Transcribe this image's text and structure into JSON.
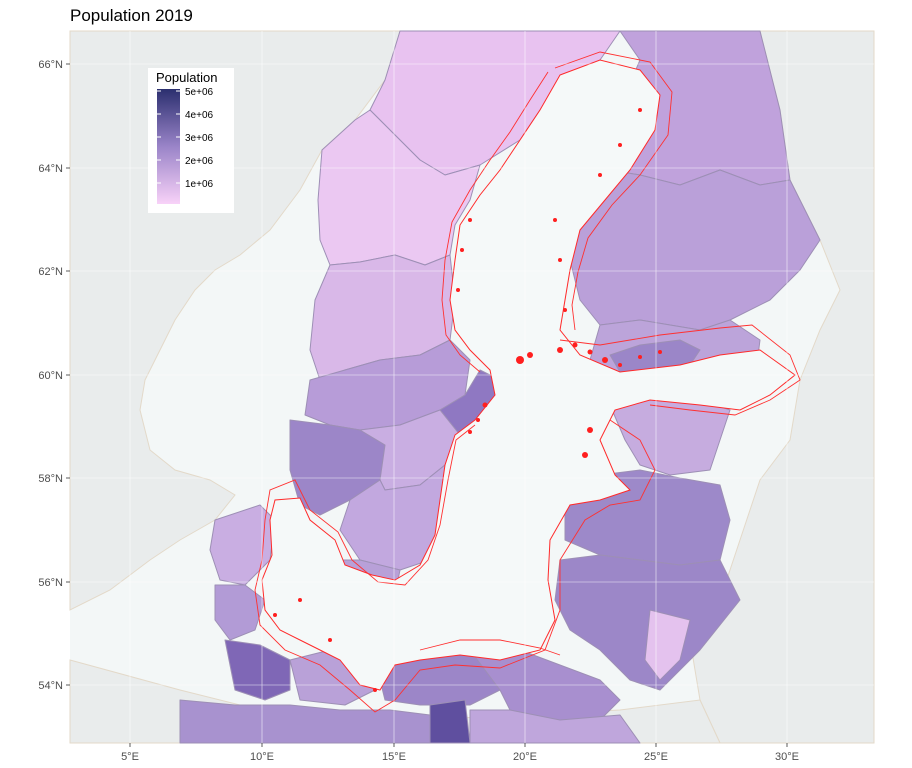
{
  "title": "Population 2019",
  "colors": {
    "panel_background": "#f3f7f7",
    "land_outside": "#e9ecec",
    "gridline": "#ffffff",
    "region_border": "#9d8fb5",
    "marine_area_outline": "#ff2a2a",
    "baltic_sea": "#f5f9f9",
    "scale_low": "#f8d2f8",
    "scale_high": "#2b2f6f"
  },
  "axes": {
    "x_ticks": [
      "5°E",
      "10°E",
      "15°E",
      "20°E",
      "25°E",
      "30°E"
    ],
    "y_ticks": [
      "54°N",
      "56°N",
      "58°N",
      "60°N",
      "62°N",
      "64°N",
      "66°N"
    ]
  },
  "legend": {
    "title": "Population",
    "labels": [
      "5e+06",
      "4e+06",
      "3e+06",
      "2e+06",
      "1e+06"
    ],
    "values": [
      5000000,
      4000000,
      3000000,
      2000000,
      1000000
    ],
    "range": [
      0,
      5000000
    ]
  },
  "chart_data": {
    "type": "choropleth",
    "title": "Population 2019",
    "legend_title": "Population",
    "scale": {
      "min": 0,
      "max": 5000000,
      "low_color": "#f8d2f8",
      "high_color": "#2b2f6f"
    },
    "xlim": [
      3,
      33.5
    ],
    "ylim": [
      52.9,
      66.6
    ],
    "x_unit": "°E",
    "y_unit": "°N",
    "legend_position": "top-left"
  }
}
